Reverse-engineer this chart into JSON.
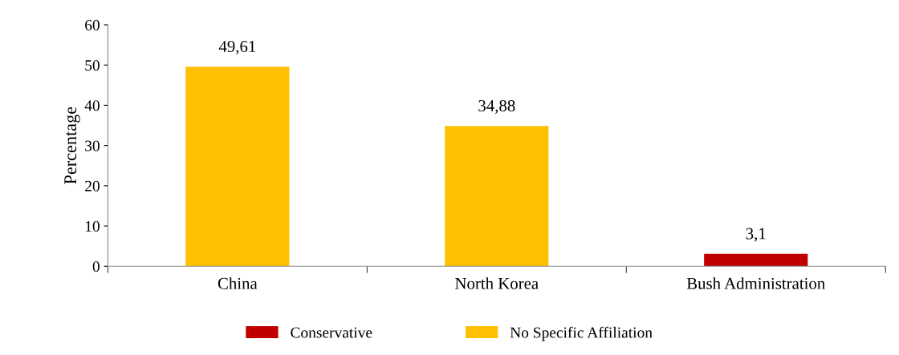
{
  "chart_data": {
    "type": "bar",
    "ylabel": "Percentage",
    "categories": [
      "China",
      "North Korea",
      "Bush Administration"
    ],
    "series": [
      {
        "name": "Conservative",
        "color": "#c00000",
        "values": [
          null,
          null,
          3.1
        ],
        "value_labels": [
          null,
          null,
          "3,1"
        ]
      },
      {
        "name": "No Specific Affiliation",
        "color": "#ffc000",
        "values": [
          49.61,
          34.88,
          null
        ],
        "value_labels": [
          "49,61",
          "34,88",
          null
        ]
      }
    ],
    "ylim": [
      0,
      60
    ],
    "yticks": [
      0,
      10,
      20,
      30,
      40,
      50,
      60
    ],
    "grid": false,
    "legend": "bottom"
  }
}
